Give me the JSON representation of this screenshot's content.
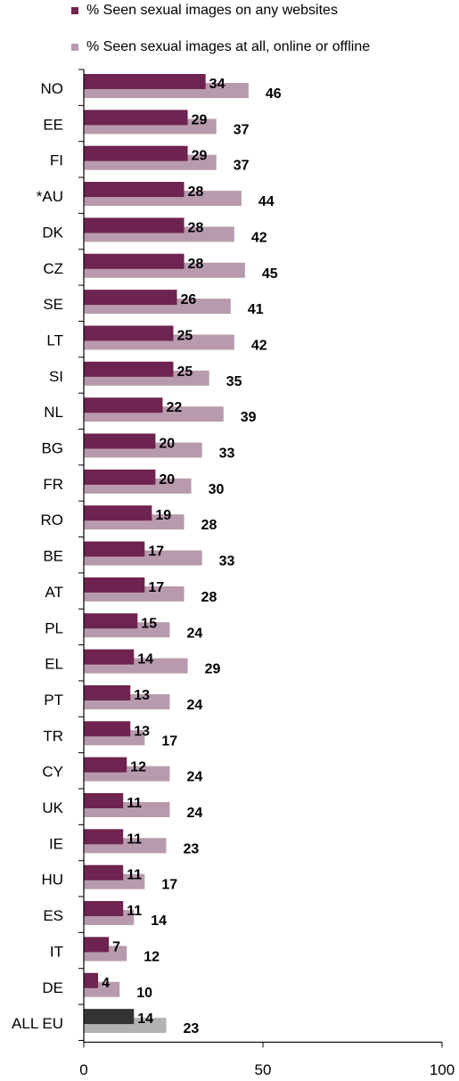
{
  "chart_data": {
    "type": "bar",
    "orientation": "horizontal",
    "title": "",
    "xlabel": "",
    "ylabel": "",
    "xlim": [
      0,
      100
    ],
    "xticks": [
      0,
      50,
      100
    ],
    "grid": false,
    "legend_position": "top",
    "categories": [
      "NO",
      "EE",
      "FI",
      "*AU",
      "DK",
      "CZ",
      "SE",
      "LT",
      "SI",
      "NL",
      "BG",
      "FR",
      "RO",
      "BE",
      "AT",
      "PL",
      "EL",
      "PT",
      "TR",
      "CY",
      "UK",
      "IE",
      "HU",
      "ES",
      "IT",
      "DE",
      "ALL EU"
    ],
    "series": [
      {
        "name": "% Seen sexual images on any websites",
        "color": "#6e2350",
        "highlight_color": "#333333",
        "values": [
          34,
          29,
          29,
          28,
          28,
          28,
          26,
          25,
          25,
          22,
          20,
          20,
          19,
          17,
          17,
          15,
          14,
          13,
          13,
          12,
          11,
          11,
          11,
          11,
          7,
          4,
          14
        ]
      },
      {
        "name": "% Seen sexual images at all, online or offline",
        "color": "#b89aae",
        "highlight_color": "#b2b2b2",
        "values": [
          46,
          37,
          37,
          44,
          42,
          45,
          41,
          42,
          35,
          39,
          33,
          30,
          28,
          33,
          28,
          24,
          29,
          24,
          17,
          24,
          24,
          23,
          17,
          14,
          12,
          10,
          23
        ]
      }
    ]
  }
}
